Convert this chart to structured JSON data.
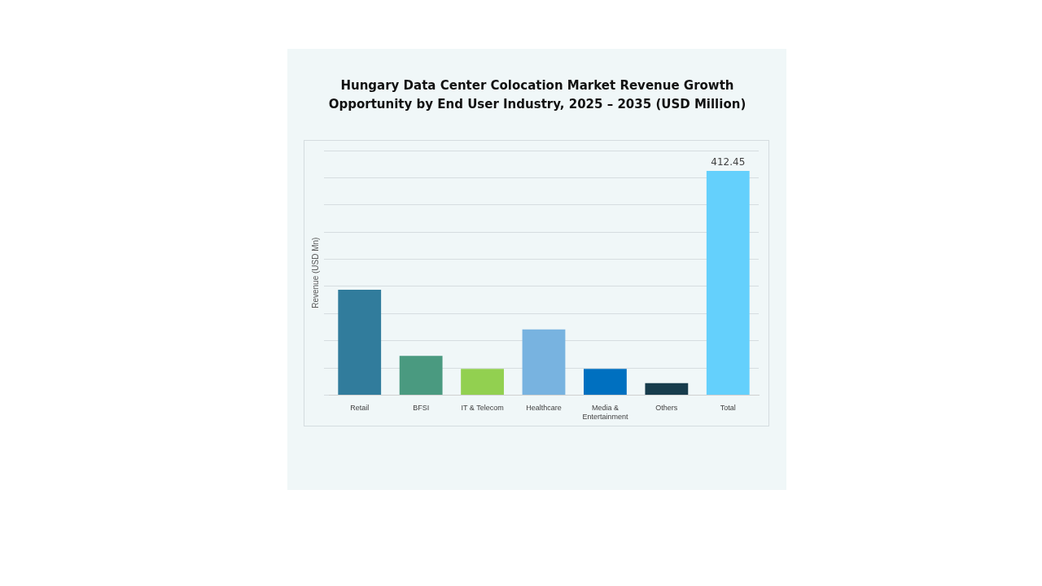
{
  "chart_data": {
    "type": "bar",
    "title": "Hungary Data Center Colocation Market Revenue Growth Opportunity by End User Industry, 2025 – 2035 (USD Million)",
    "ylabel": "Revenue (USD Mn)",
    "categories": [
      "Retail",
      "BFSI",
      "IT & Telecom",
      "Healthcare",
      "Media & Entertainment",
      "Others",
      "Total"
    ],
    "values": [
      194,
      72,
      48,
      121,
      48,
      22,
      412.45
    ],
    "colors": [
      "#317c9c",
      "#4a9a80",
      "#92d050",
      "#78b3e0",
      "#0070c0",
      "#173c4c",
      "#64d0fc"
    ],
    "value_labels": [
      null,
      null,
      null,
      null,
      null,
      null,
      "412.45"
    ],
    "grid": "y",
    "legend": false
  }
}
